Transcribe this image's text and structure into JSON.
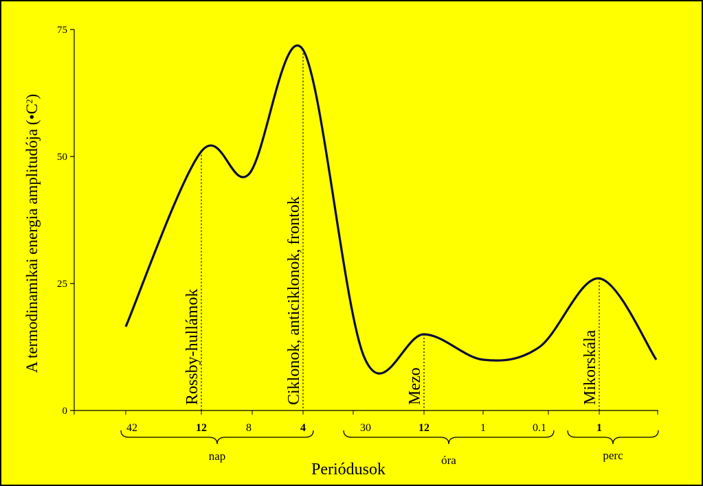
{
  "colors": {
    "background": "#FFFF00",
    "frame": "#000000",
    "curve": "#0b0b3a",
    "axis": "#000000"
  },
  "chart_data": {
    "type": "line",
    "title": "",
    "ylabel_main": "A termodinamikai energia amplitudója (•C",
    "ylabel_sup": "2",
    "ylabel_close": ")",
    "xlabel": "Periódusok",
    "ylim": [
      0,
      75
    ],
    "y_ticks": [
      "0",
      "25",
      "50",
      "75"
    ],
    "x_tick_labels": [
      {
        "label": "42",
        "bold": false,
        "group": "nap"
      },
      {
        "label": "12",
        "bold": true,
        "group": "nap"
      },
      {
        "label": "8",
        "bold": false,
        "group": "nap"
      },
      {
        "label": "4",
        "bold": true,
        "group": "nap"
      },
      {
        "label": "30",
        "bold": false,
        "group": "óra"
      },
      {
        "label": "12",
        "bold": true,
        "group": "óra"
      },
      {
        "label": "1",
        "bold": false,
        "group": "óra"
      },
      {
        "label": "0.1",
        "bold": false,
        "group": "óra"
      },
      {
        "label": "1",
        "bold": true,
        "group": "perc"
      }
    ],
    "groups": [
      "nap",
      "óra",
      "perc"
    ],
    "grid": false,
    "series": [
      {
        "points": [
          {
            "x": "42 nap",
            "y": 16.5
          },
          {
            "x": "12 nap",
            "y": 51
          },
          {
            "x": "8 nap",
            "y": 46.5
          },
          {
            "x": "4 nap",
            "y": 71
          },
          {
            "x": "30 óra",
            "y": 10.5
          },
          {
            "x": "12 óra",
            "y": 15
          },
          {
            "x": "1 óra",
            "y": 10
          },
          {
            "x": "0.1 óra",
            "y": 12.5
          },
          {
            "x": "1 perc",
            "y": 26
          },
          {
            "x": "end",
            "y": 10
          }
        ]
      }
    ],
    "annotations": [
      {
        "text": "Rossby-hullámok",
        "at": "12 nap",
        "y": 51
      },
      {
        "text": "Ciklonok, anticiklonok, frontok",
        "at": "4 nap",
        "y": 71
      },
      {
        "text": "Mezo",
        "at": "12 óra",
        "y": 15
      },
      {
        "text": "Mikorskála",
        "at": "1 perc",
        "y": 26
      }
    ]
  }
}
